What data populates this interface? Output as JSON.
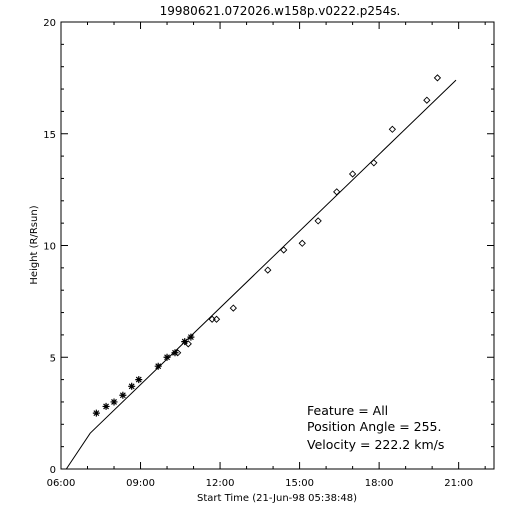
{
  "chart_data": {
    "type": "scatter",
    "title": "19980621.072026.w158p.v0222.p254s.",
    "xlabel": "Start Time (21-Jun-98 05:38:48)",
    "ylabel": "Height  (R/Rsun)",
    "xlim": [
      "06:00",
      "22:20"
    ],
    "ylim": [
      0,
      20
    ],
    "x_ticks": [
      "06:00",
      "09:00",
      "12:00",
      "15:00",
      "18:00",
      "21:00"
    ],
    "y_ticks": [
      0,
      5,
      10,
      15,
      20
    ],
    "grid": false,
    "legend": "none",
    "annotations": {
      "feature": "Feature = All",
      "position_angle": "Position Angle =  255.",
      "velocity": "Velocity =  222.2 km/s"
    },
    "series": [
      {
        "marker": "asterisk",
        "points": [
          {
            "x": "07:20",
            "y": 2.5
          },
          {
            "x": "07:42",
            "y": 2.8
          },
          {
            "x": "08:00",
            "y": 3.0
          },
          {
            "x": "08:20",
            "y": 3.3
          },
          {
            "x": "08:40",
            "y": 3.7
          },
          {
            "x": "08:56",
            "y": 4.0
          },
          {
            "x": "09:40",
            "y": 4.6
          },
          {
            "x": "10:00",
            "y": 5.0
          },
          {
            "x": "10:18",
            "y": 5.2
          },
          {
            "x": "10:40",
            "y": 5.7
          },
          {
            "x": "10:54",
            "y": 5.9
          }
        ]
      },
      {
        "marker": "diamond",
        "points": [
          {
            "x": "10:24",
            "y": 5.2
          },
          {
            "x": "10:48",
            "y": 5.6
          },
          {
            "x": "11:42",
            "y": 6.7
          },
          {
            "x": "11:52",
            "y": 6.7
          },
          {
            "x": "12:30",
            "y": 7.2
          },
          {
            "x": "13:48",
            "y": 8.9
          },
          {
            "x": "14:24",
            "y": 9.8
          },
          {
            "x": "15:06",
            "y": 10.1
          },
          {
            "x": "15:42",
            "y": 11.1
          },
          {
            "x": "16:24",
            "y": 12.4
          },
          {
            "x": "17:00",
            "y": 13.2
          },
          {
            "x": "17:48",
            "y": 13.7
          },
          {
            "x": "18:30",
            "y": 15.2
          },
          {
            "x": "19:48",
            "y": 16.5
          },
          {
            "x": "20:12",
            "y": 17.5
          }
        ]
      },
      {
        "marker": "line",
        "points": [
          {
            "x": "06:12",
            "y": 0
          },
          {
            "x": "07:06",
            "y": 1.6
          },
          {
            "x": "20:54",
            "y": 17.4
          }
        ]
      }
    ]
  }
}
